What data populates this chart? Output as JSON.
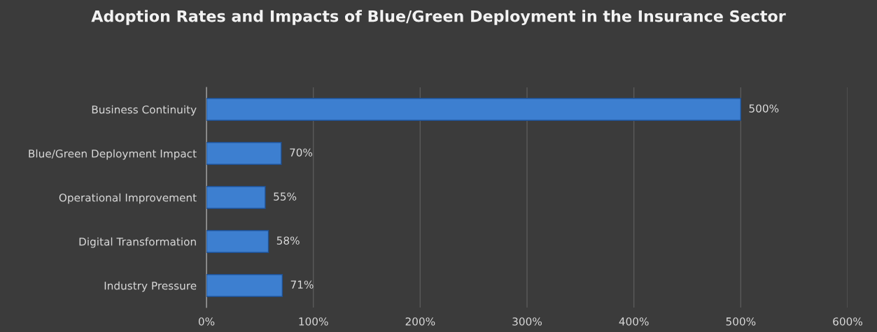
{
  "chart_data": {
    "type": "bar",
    "orientation": "horizontal",
    "title": "Adoption Rates and Impacts of Blue/Green Deployment in the Insurance Sector",
    "categories": [
      "Business Continuity",
      "Blue/Green Deployment Impact",
      "Operational Improvement",
      "Digital Transformation",
      "Industry Pressure"
    ],
    "values": [
      500,
      70,
      55,
      58,
      71
    ],
    "value_labels": [
      "500%",
      "70%",
      "55%",
      "58%",
      "71%"
    ],
    "color": "#3d7fd0",
    "xlim": [
      0,
      600
    ],
    "xticks": [
      {
        "value": 0,
        "label": "0%"
      },
      {
        "value": 100,
        "label": "100%"
      },
      {
        "value": 200,
        "label": "200%"
      },
      {
        "value": 300,
        "label": "300%"
      },
      {
        "value": 400,
        "label": "400%"
      },
      {
        "value": 500,
        "label": "500%"
      },
      {
        "value": 600,
        "label": "600%"
      }
    ],
    "grid": "x",
    "legend": false
  }
}
